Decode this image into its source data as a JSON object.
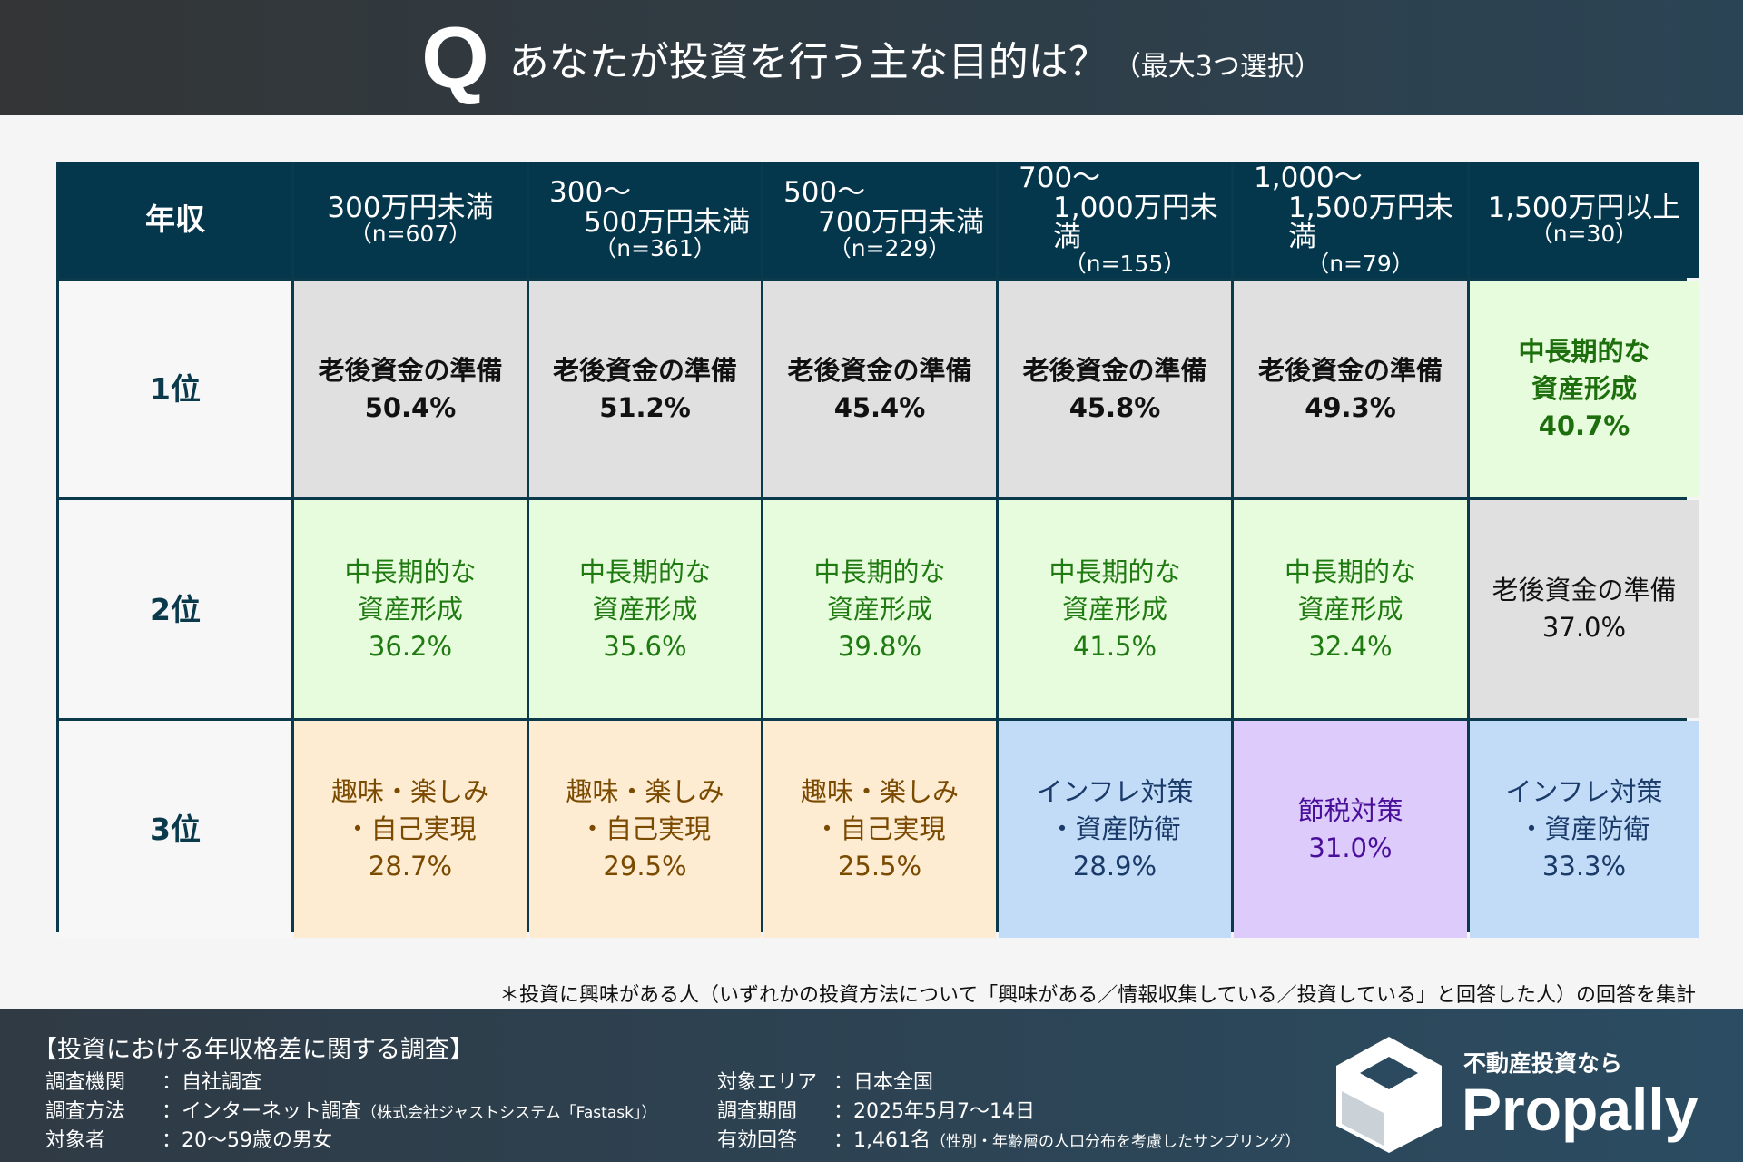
{
  "header": {
    "q": "Q",
    "title": "あなたが投資を行う主な目的は？",
    "subtitle": "（最大3つ選択）"
  },
  "chart_data": {
    "type": "table",
    "corner": "年収",
    "columns": [
      {
        "line1": "300万円未満",
        "line2": "",
        "n": "（n=607）"
      },
      {
        "line1": "300〜",
        "line2": "500万円未満",
        "n": "（n=361）"
      },
      {
        "line1": "500〜",
        "line2": "700万円未満",
        "n": "（n=229）"
      },
      {
        "line1": "700〜",
        "line2": "1,000万円未満",
        "n": "（n=155）"
      },
      {
        "line1": "1,000〜",
        "line2": "1,500万円未満",
        "n": "（n=79）"
      },
      {
        "line1": "1,500万円以上",
        "line2": "",
        "n": "（n=30）"
      }
    ],
    "rows": [
      {
        "rank": "1位",
        "cells": [
          {
            "l1": "老後資金の準備",
            "l2": "",
            "v": "50.4%",
            "c": "gray"
          },
          {
            "l1": "老後資金の準備",
            "l2": "",
            "v": "51.2%",
            "c": "gray"
          },
          {
            "l1": "老後資金の準備",
            "l2": "",
            "v": "45.4%",
            "c": "gray"
          },
          {
            "l1": "老後資金の準備",
            "l2": "",
            "v": "45.8%",
            "c": "gray"
          },
          {
            "l1": "老後資金の準備",
            "l2": "",
            "v": "49.3%",
            "c": "gray"
          },
          {
            "l1": "中長期的な",
            "l2": "資産形成",
            "v": "40.7%",
            "c": "green"
          }
        ]
      },
      {
        "rank": "2位",
        "cells": [
          {
            "l1": "中長期的な",
            "l2": "資産形成",
            "v": "36.2%",
            "c": "green"
          },
          {
            "l1": "中長期的な",
            "l2": "資産形成",
            "v": "35.6%",
            "c": "green"
          },
          {
            "l1": "中長期的な",
            "l2": "資産形成",
            "v": "39.8%",
            "c": "green"
          },
          {
            "l1": "中長期的な",
            "l2": "資産形成",
            "v": "41.5%",
            "c": "green"
          },
          {
            "l1": "中長期的な",
            "l2": "資産形成",
            "v": "32.4%",
            "c": "green"
          },
          {
            "l1": "老後資金の準備",
            "l2": "",
            "v": "37.0%",
            "c": "gray"
          }
        ]
      },
      {
        "rank": "3位",
        "cells": [
          {
            "l1": "趣味・楽しみ",
            "l2": "・自己実現",
            "v": "28.7%",
            "c": "orange"
          },
          {
            "l1": "趣味・楽しみ",
            "l2": "・自己実現",
            "v": "29.5%",
            "c": "orange"
          },
          {
            "l1": "趣味・楽しみ",
            "l2": "・自己実現",
            "v": "25.5%",
            "c": "orange"
          },
          {
            "l1": "インフレ対策",
            "l2": "・資産防衛",
            "v": "28.9%",
            "c": "blue"
          },
          {
            "l1": "節税対策",
            "l2": "",
            "v": "31.0%",
            "c": "purple"
          },
          {
            "l1": "インフレ対策",
            "l2": "・資産防衛",
            "v": "33.3%",
            "c": "blue"
          }
        ]
      }
    ]
  },
  "note": "＊投資に興味がある人（いずれかの投資方法について「興味がある／情報収集している／投資している」と回答した人）の回答を集計",
  "footer": {
    "title": "【投資における年収格差に関する調査】",
    "left": [
      {
        "k": "調査機関",
        "v": "：自社調査",
        "s": ""
      },
      {
        "k": "調査方法",
        "v": "：インターネット調査",
        "s": "（株式会社ジャストシステム「Fastask」）"
      },
      {
        "k": "対象者",
        "v": "：20〜59歳の男女",
        "s": ""
      }
    ],
    "right": [
      {
        "k": "対象エリア",
        "v": "：日本全国",
        "s": ""
      },
      {
        "k": "調査期間",
        "v": "：2025年5月7〜14日",
        "s": ""
      },
      {
        "k": "有効回答",
        "v": "：1,461名",
        "s": "（性別・年齢層の人口分布を考慮したサンプリング）"
      }
    ],
    "tagline": "不動産投資なら",
    "brand": "Propally"
  }
}
